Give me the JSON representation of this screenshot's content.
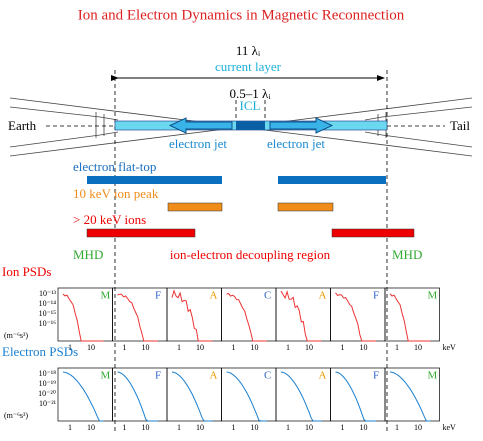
{
  "title": "Ion and Electron Dynamics in Magnetic Reconnection",
  "scale": {
    "width_label": "11 λᵢ",
    "current_layer": "current layer",
    "icl_width": "0.5–1 λᵢ",
    "icl": "ICL"
  },
  "labels": {
    "earth": "Earth",
    "tail": "Tail",
    "jets": [
      "electron jet",
      "electron jet"
    ]
  },
  "bands": [
    {
      "label": "electron flat-top"
    },
    {
      "label": "10 keV ion peak"
    },
    {
      "label": "> 20 keV ions"
    }
  ],
  "regions": [
    "MHD",
    "ion-electron decoupling region",
    "MHD"
  ],
  "ion_psds": {
    "title": "Ion PSDs",
    "yticks": [
      "10⁻¹³",
      "10⁻¹⁴",
      "10⁻¹⁵",
      "10⁻¹⁶"
    ],
    "unit": "(m⁻⁶s³)",
    "panels": [
      "M",
      "F",
      "A",
      "C",
      "A",
      "F",
      "M"
    ],
    "xticks": [
      "1",
      "10"
    ],
    "xunit": "keV"
  },
  "electron_psds": {
    "title": "Electron PSDs",
    "yticks": [
      "10⁻¹⁸",
      "10⁻¹⁹",
      "10⁻²⁰",
      "10⁻²¹"
    ],
    "unit": "(m⁻⁶s³)",
    "panels": [
      "M",
      "F",
      "A",
      "C",
      "A",
      "F",
      "M"
    ],
    "xticks": [
      "1",
      "10"
    ],
    "xunit": "keV"
  }
}
